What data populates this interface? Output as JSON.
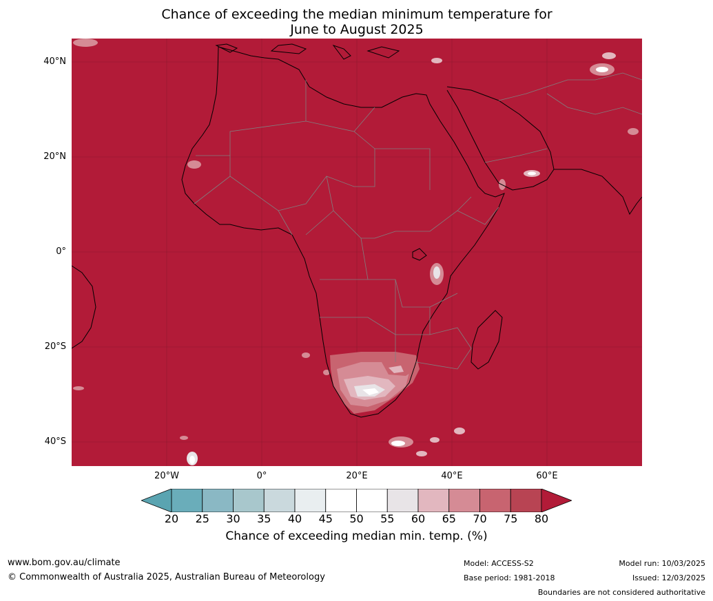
{
  "title": {
    "line1": "Chance of exceeding the median minimum temperature for",
    "line2": "June to August 2025"
  },
  "axes": {
    "lat_labels": [
      "40°N",
      "20°N",
      "0°",
      "20°S",
      "40°S"
    ],
    "lon_labels": [
      "20°W",
      "0°",
      "20°E",
      "40°E",
      "60°E"
    ]
  },
  "colorbar": {
    "ticks": [
      "20",
      "25",
      "30",
      "35",
      "40",
      "45",
      "50",
      "55",
      "60",
      "65",
      "70",
      "75",
      "80"
    ],
    "colors": [
      "#5aa4b1",
      "#6aadba",
      "#8ab8c4",
      "#a8c7cc",
      "#cad9dd",
      "#e9eef0",
      "#ffffff",
      "#ffffff",
      "#e8e4e7",
      "#e2b7bf",
      "#d58b95",
      "#c86470",
      "#b84453",
      "#b21b38"
    ],
    "label": "Chance of exceeding median min. temp. (%)"
  },
  "map": {
    "background_color": "#b21b38",
    "coast_color": "#000000",
    "border_color": "#808080"
  },
  "footer": {
    "url": "www.bom.gov.au/climate",
    "copyright": "© Commonwealth of Australia 2025, Australian Bureau of Meteorology",
    "model": "Model: ACCESS-S2",
    "base_period": "Base period: 1981-2018",
    "model_run": "Model run: 10/03/2025",
    "issued": "Issued: 12/03/2025",
    "disclaimer": "Boundaries are not considered authoritative"
  }
}
